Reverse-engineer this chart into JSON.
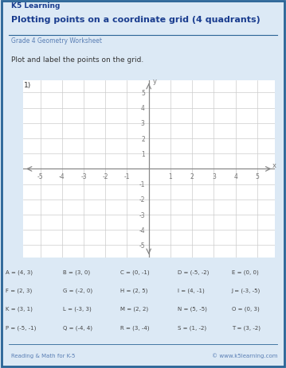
{
  "title": "Plotting points on a coordinate grid (4 quadrants)",
  "subtitle": "Grade 4 Geometry Worksheet",
  "instruction": "Plot and label the points on the grid.",
  "problem_number": "1)",
  "xlim": [
    -5.8,
    5.8
  ],
  "ylim": [
    -5.8,
    5.8
  ],
  "xticks": [
    -5,
    -4,
    -3,
    -2,
    -1,
    1,
    2,
    3,
    4,
    5
  ],
  "yticks": [
    -5,
    -4,
    -3,
    -2,
    -1,
    1,
    2,
    3,
    4,
    5
  ],
  "xlabel": "x",
  "ylabel": "y",
  "grid_color": "#cccccc",
  "axis_color": "#888888",
  "title_color": "#1a3d8f",
  "subtitle_color": "#5a7fb5",
  "text_color": "#555555",
  "border_color": "#2a6496",
  "background": "#ffffff",
  "outer_background": "#dce9f5",
  "point_labels_table": [
    [
      "A = (4, 3)",
      "B = (3, 0)",
      "C = (0, -1)",
      "D = (-5, -2)",
      "E = (0, 0)"
    ],
    [
      "F = (2, 3)",
      "G = (-2, 0)",
      "H = (2, 5)",
      "I = (4, -1)",
      "J = (-3, -5)"
    ],
    [
      "K = (3, 1)",
      "L = (-3, 3)",
      "M = (2, 2)",
      "N = (5, -5)",
      "O = (0, 3)"
    ],
    [
      "P = (-5, -1)",
      "Q = (-4, 4)",
      "R = (3, -4)",
      "S = (1, -2)",
      "T = (3, -2)"
    ]
  ],
  "footer_left": "Reading & Math for K-5",
  "footer_right": "© www.k5learning.com"
}
